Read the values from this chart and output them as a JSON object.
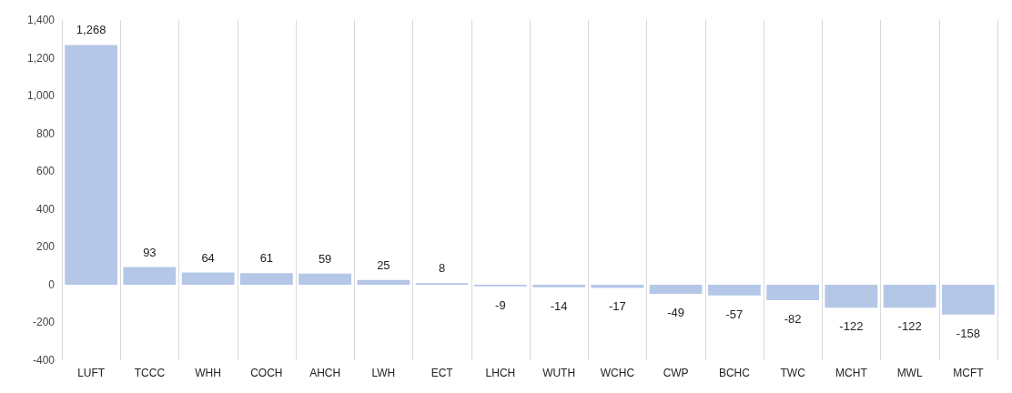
{
  "chart_data": {
    "type": "bar",
    "categories": [
      "LUFT",
      "TCCC",
      "WHH",
      "COCH",
      "AHCH",
      "LWH",
      "ECT",
      "LHCH",
      "WUTH",
      "WCHC",
      "CWP",
      "BCHC",
      "TWC",
      "MCHT",
      "MWL",
      "MCFT"
    ],
    "values": [
      1268,
      93,
      64,
      61,
      59,
      25,
      8,
      -9,
      -14,
      -17,
      -49,
      -57,
      -82,
      -122,
      -122,
      -158
    ],
    "value_labels": [
      "1,268",
      "93",
      "64",
      "61",
      "59",
      "25",
      "8",
      "-9",
      "-14",
      "-17",
      "-49",
      "-57",
      "-82",
      "-122",
      "-122",
      "-158"
    ],
    "color": "#b4c7e7",
    "ylim": [
      -400,
      1400
    ],
    "yticks": [
      -400,
      -200,
      0,
      200,
      400,
      600,
      800,
      {
        "value": 1000,
        "label": "1,000"
      },
      {
        "value": 1200,
        "label": "1,200"
      },
      {
        "value": 1400,
        "label": "1,400"
      }
    ],
    "grid": "x"
  }
}
